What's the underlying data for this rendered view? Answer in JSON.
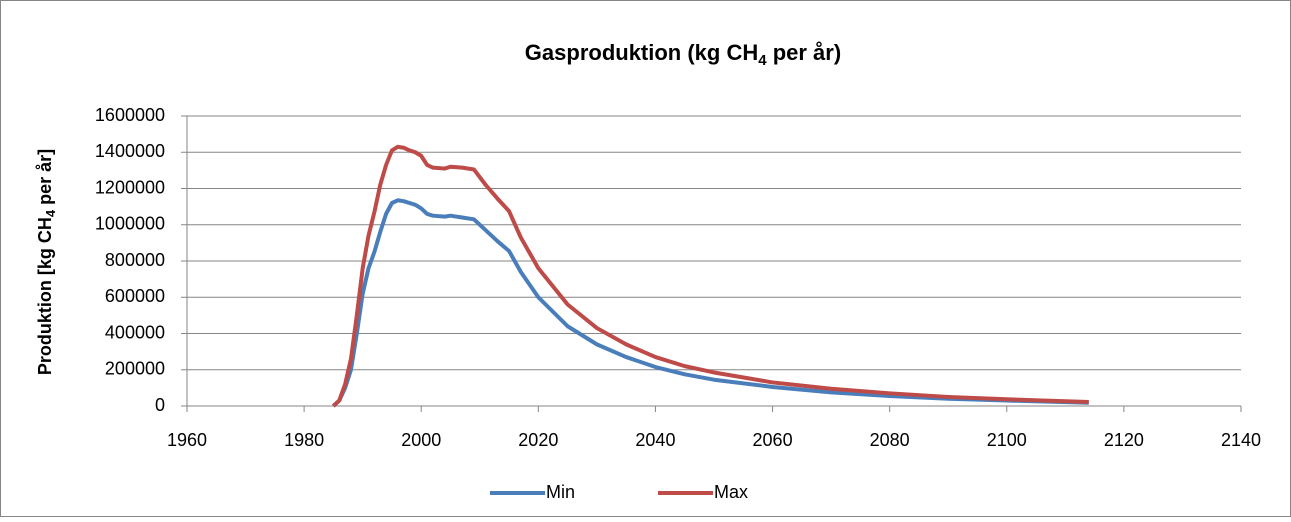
{
  "chart_data": {
    "type": "line",
    "title": [
      "Gasproduktion (kg CH",
      "4",
      " per år)"
    ],
    "y_label": [
      "Produktion [kg CH",
      "4",
      " per år]"
    ],
    "x": [
      1985,
      1986,
      1987,
      1988,
      1989,
      1990,
      1991,
      1992,
      1993,
      1994,
      1995,
      1996,
      1997,
      1998,
      1999,
      2000,
      2001,
      2002,
      2004,
      2005,
      2007,
      2009,
      2011,
      2013,
      2015,
      2017,
      2020,
      2025,
      2030,
      2035,
      2040,
      2045,
      2050,
      2060,
      2070,
      2080,
      2090,
      2100,
      2114
    ],
    "series": [
      {
        "name": "Min",
        "color": "#4a7ebb",
        "values": [
          0,
          30000,
          100000,
          200000,
          400000,
          620000,
          760000,
          850000,
          960000,
          1060000,
          1120000,
          1135000,
          1130000,
          1120000,
          1110000,
          1090000,
          1060000,
          1050000,
          1045000,
          1050000,
          1040000,
          1030000,
          970000,
          910000,
          855000,
          740000,
          600000,
          440000,
          340000,
          270000,
          215000,
          175000,
          145000,
          105000,
          75000,
          55000,
          40000,
          30000,
          18000
        ]
      },
      {
        "name": "Max",
        "color": "#be4b48",
        "values": [
          0,
          30000,
          120000,
          260000,
          500000,
          760000,
          940000,
          1070000,
          1220000,
          1330000,
          1410000,
          1430000,
          1425000,
          1410000,
          1400000,
          1380000,
          1330000,
          1315000,
          1310000,
          1320000,
          1315000,
          1305000,
          1220000,
          1145000,
          1075000,
          930000,
          760000,
          560000,
          430000,
          340000,
          270000,
          220000,
          185000,
          130000,
          95000,
          70000,
          50000,
          37000,
          22000
        ]
      }
    ],
    "xlim": [
      1960,
      2140
    ],
    "xticks": [
      1960,
      1980,
      2000,
      2020,
      2040,
      2060,
      2080,
      2100,
      2120,
      2140
    ],
    "ylim": [
      0,
      1600000
    ],
    "yticks": [
      0,
      200000,
      400000,
      600000,
      800000,
      1000000,
      1200000,
      1400000,
      1600000
    ],
    "grid": true,
    "legend": "bottom"
  }
}
